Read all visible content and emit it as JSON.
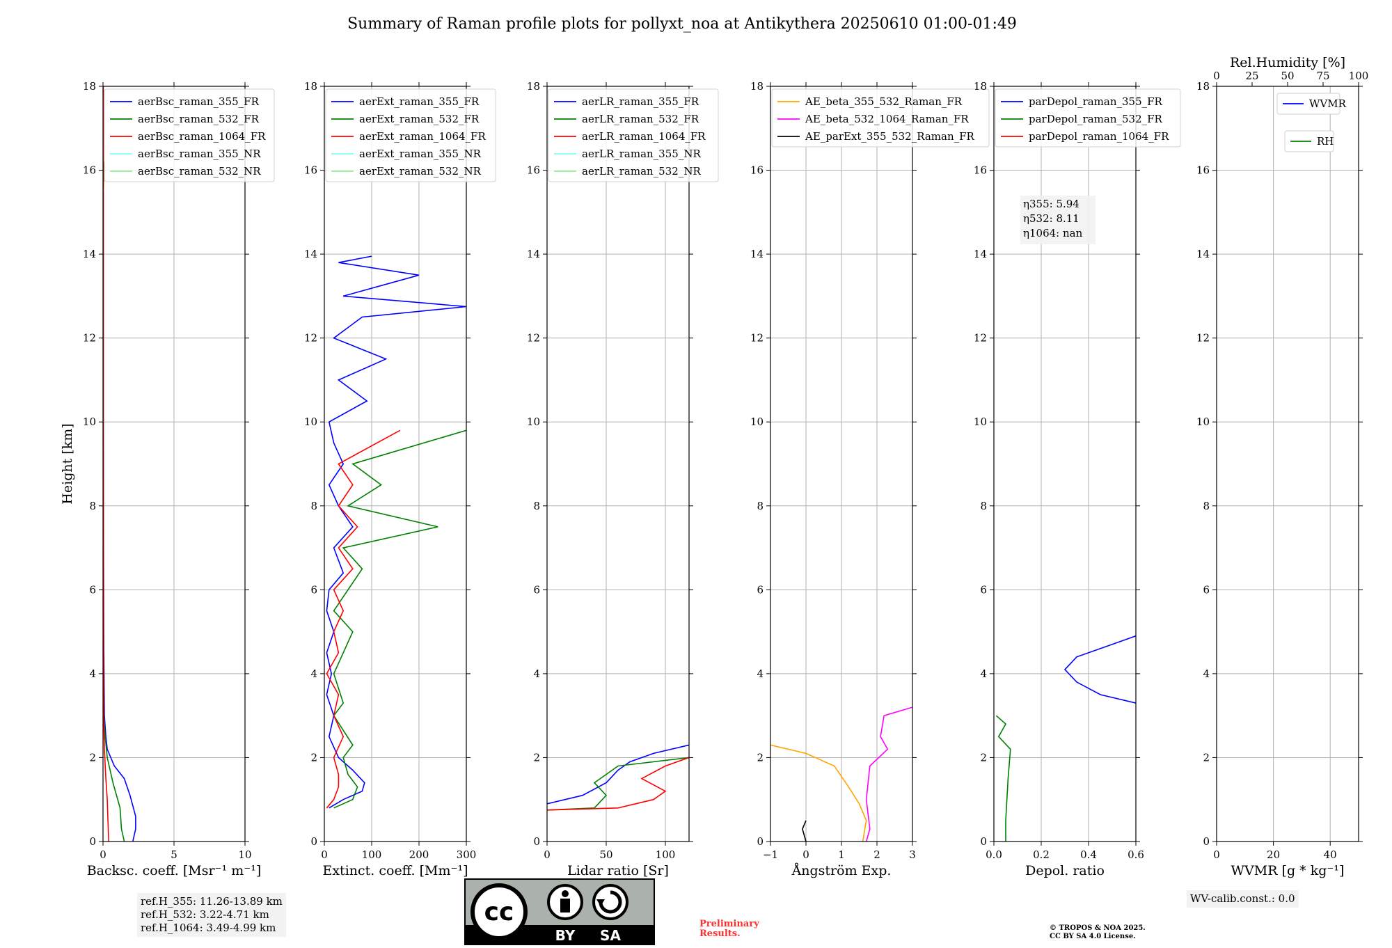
{
  "title": "Summary of Raman profile plots for pollyxt_noa at Antikythera 20250610 01:00-01:49",
  "chart_data": [
    {
      "type": "line",
      "xlabel": "Backsc. coeff. [Msr⁻¹ m⁻¹]",
      "ylabel": "Height [km]",
      "xlim": [
        0,
        10
      ],
      "ylim": [
        0,
        18
      ],
      "xticks": [
        0,
        5,
        10
      ],
      "yticks": [
        0,
        2,
        4,
        6,
        8,
        10,
        12,
        14,
        16,
        18
      ],
      "grid": true,
      "legend_position": "top-left",
      "series": [
        {
          "name": "aerBsc_raman_355_FR",
          "color": "#0000ff",
          "points": [
            [
              2.1,
              0
            ],
            [
              2.3,
              0.3
            ],
            [
              2.3,
              0.6
            ],
            [
              1.9,
              1.1
            ],
            [
              1.5,
              1.5
            ],
            [
              0.8,
              1.8
            ],
            [
              0.3,
              2.2
            ],
            [
              0.2,
              2.5
            ],
            [
              0.1,
              3
            ],
            [
              0.05,
              5
            ],
            [
              0.02,
              10
            ],
            [
              0.02,
              14
            ],
            [
              0.02,
              15.5
            ]
          ]
        },
        {
          "name": "aerBsc_raman_532_FR",
          "color": "#008000",
          "points": [
            [
              1.5,
              0
            ],
            [
              1.3,
              0.3
            ],
            [
              1.2,
              0.8
            ],
            [
              0.7,
              1.4
            ],
            [
              0.3,
              2
            ],
            [
              0.15,
              2.5
            ],
            [
              0.05,
              3
            ],
            [
              0.02,
              8
            ],
            [
              0.02,
              15.5
            ],
            [
              0.08,
              16.2
            ]
          ]
        },
        {
          "name": "aerBsc_raman_1064_FR",
          "color": "#ff0000",
          "points": [
            [
              0.4,
              0
            ],
            [
              0.35,
              0.5
            ],
            [
              0.3,
              1
            ],
            [
              0.2,
              1.5
            ],
            [
              0.1,
              2.2
            ],
            [
              0.05,
              3
            ],
            [
              0.02,
              10
            ],
            [
              0.02,
              18
            ]
          ]
        },
        {
          "name": "aerBsc_raman_355_NR",
          "color": "#7fffff",
          "points": []
        },
        {
          "name": "aerBsc_raman_532_NR",
          "color": "#90ee90",
          "points": []
        }
      ]
    },
    {
      "type": "line",
      "xlabel": "Extinct. coeff. [Mm⁻¹]",
      "xlim": [
        0,
        300
      ],
      "ylim": [
        0,
        18
      ],
      "xticks": [
        0,
        100,
        200,
        300
      ],
      "yticks": [
        0,
        2,
        4,
        6,
        8,
        10,
        12,
        14,
        16,
        18
      ],
      "grid": true,
      "legend_position": "top-left",
      "series": [
        {
          "name": "aerExt_raman_355_FR",
          "color": "#0000ff",
          "points": [
            [
              10,
              0.8
            ],
            [
              40,
              1
            ],
            [
              80,
              1.2
            ],
            [
              85,
              1.4
            ],
            [
              60,
              1.7
            ],
            [
              30,
              2
            ],
            [
              10,
              2.5
            ],
            [
              20,
              3
            ],
            [
              5,
              3.5
            ],
            [
              15,
              4
            ],
            [
              5,
              4.5
            ],
            [
              20,
              5
            ],
            [
              5,
              5.5
            ],
            [
              10,
              6
            ],
            [
              40,
              6.4
            ],
            [
              20,
              7
            ],
            [
              60,
              7.5
            ],
            [
              30,
              8
            ],
            [
              10,
              8.5
            ],
            [
              40,
              9
            ],
            [
              20,
              9.5
            ],
            [
              10,
              10
            ],
            [
              90,
              10.5
            ],
            [
              30,
              11
            ],
            [
              130,
              11.5
            ],
            [
              20,
              12
            ],
            [
              80,
              12.5
            ],
            [
              300,
              12.75
            ],
            [
              40,
              13
            ],
            [
              200,
              13.5
            ],
            [
              30,
              13.8
            ],
            [
              100,
              13.95
            ]
          ]
        },
        {
          "name": "aerExt_raman_532_FR",
          "color": "#008000",
          "points": [
            [
              20,
              0.8
            ],
            [
              60,
              1
            ],
            [
              70,
              1.3
            ],
            [
              50,
              1.6
            ],
            [
              40,
              2
            ],
            [
              60,
              2.3
            ],
            [
              20,
              3
            ],
            [
              40,
              3.3
            ],
            [
              20,
              4
            ],
            [
              40,
              4.5
            ],
            [
              60,
              5
            ],
            [
              20,
              5.5
            ],
            [
              80,
              6.5
            ],
            [
              40,
              7
            ],
            [
              240,
              7.5
            ],
            [
              50,
              8
            ],
            [
              120,
              8.5
            ],
            [
              60,
              9
            ],
            [
              300,
              9.8
            ]
          ]
        },
        {
          "name": "aerExt_raman_1064_FR",
          "color": "#ff0000",
          "points": [
            [
              5,
              0.8
            ],
            [
              20,
              1
            ],
            [
              30,
              1.3
            ],
            [
              30,
              1.6
            ],
            [
              20,
              2
            ],
            [
              40,
              2.5
            ],
            [
              20,
              3
            ],
            [
              30,
              3.5
            ],
            [
              5,
              4
            ],
            [
              30,
              4.5
            ],
            [
              20,
              5
            ],
            [
              40,
              5.5
            ],
            [
              20,
              6
            ],
            [
              60,
              6.5
            ],
            [
              30,
              7
            ],
            [
              70,
              7.5
            ],
            [
              30,
              8
            ],
            [
              60,
              8.5
            ],
            [
              30,
              9
            ],
            [
              160,
              9.8
            ]
          ]
        },
        {
          "name": "aerExt_raman_355_NR",
          "color": "#7fffff",
          "points": []
        },
        {
          "name": "aerExt_raman_532_NR",
          "color": "#90ee90",
          "points": []
        }
      ]
    },
    {
      "type": "line",
      "xlabel": "Lidar ratio [Sr]",
      "xlim": [
        0,
        120
      ],
      "ylim": [
        0,
        18
      ],
      "xticks": [
        0,
        50,
        100
      ],
      "yticks": [
        0,
        2,
        4,
        6,
        8,
        10,
        12,
        14,
        16,
        18
      ],
      "grid": true,
      "legend_position": "top-left",
      "series": [
        {
          "name": "aerLR_raman_355_FR",
          "color": "#0000ff",
          "points": [
            [
              0,
              0.9
            ],
            [
              30,
              1.1
            ],
            [
              50,
              1.4
            ],
            [
              60,
              1.7
            ],
            [
              70,
              1.9
            ],
            [
              90,
              2.1
            ],
            [
              120,
              2.3
            ]
          ]
        },
        {
          "name": "aerLR_raman_532_FR",
          "color": "#008000",
          "points": [
            [
              0,
              0.75
            ],
            [
              40,
              0.8
            ],
            [
              50,
              1.1
            ],
            [
              40,
              1.4
            ],
            [
              50,
              1.6
            ],
            [
              60,
              1.8
            ],
            [
              120,
              2.0
            ]
          ]
        },
        {
          "name": "aerLR_raman_1064_FR",
          "color": "#ff0000",
          "points": [
            [
              0,
              0.75
            ],
            [
              60,
              0.8
            ],
            [
              90,
              1
            ],
            [
              100,
              1.2
            ],
            [
              80,
              1.5
            ],
            [
              100,
              1.8
            ],
            [
              120,
              2.0
            ]
          ]
        },
        {
          "name": "aerLR_raman_355_NR",
          "color": "#7fffff",
          "points": []
        },
        {
          "name": "aerLR_raman_532_NR",
          "color": "#90ee90",
          "points": []
        }
      ]
    },
    {
      "type": "line",
      "xlabel": "Ångström Exp.",
      "xlim": [
        -1,
        3
      ],
      "ylim": [
        0,
        18
      ],
      "xticks": [
        -1,
        0,
        1,
        2,
        3
      ],
      "yticks": [
        0,
        2,
        4,
        6,
        8,
        10,
        12,
        14,
        16,
        18
      ],
      "grid": true,
      "legend_position": "top-left",
      "series": [
        {
          "name": "AE_beta_355_532_Raman_FR",
          "color": "#ffa500",
          "points": [
            [
              -1,
              2.3
            ],
            [
              0,
              2.1
            ],
            [
              0.8,
              1.8
            ],
            [
              1.2,
              1.3
            ],
            [
              1.5,
              0.9
            ],
            [
              1.7,
              0.5
            ],
            [
              1.6,
              0
            ]
          ]
        },
        {
          "name": "AE_beta_532_1064_Raman_FR",
          "color": "#ff00ff",
          "points": [
            [
              3,
              3.2
            ],
            [
              2.2,
              3
            ],
            [
              2.1,
              2.5
            ],
            [
              2.3,
              2.2
            ],
            [
              1.8,
              1.8
            ],
            [
              1.7,
              1
            ],
            [
              1.8,
              0.3
            ],
            [
              1.7,
              0
            ]
          ]
        },
        {
          "name": "AE_parExt_355_532_Raman_FR",
          "color": "#000000",
          "points": [
            [
              0,
              0.5
            ],
            [
              -0.1,
              0.3
            ],
            [
              0,
              0
            ]
          ]
        }
      ]
    },
    {
      "type": "line",
      "xlabel": "Depol. ratio",
      "xlim": [
        0,
        0.6
      ],
      "ylim": [
        0,
        18
      ],
      "xticks": [
        0.0,
        0.2,
        0.4,
        0.6
      ],
      "yticks": [
        0,
        2,
        4,
        6,
        8,
        10,
        12,
        14,
        16,
        18
      ],
      "grid": true,
      "legend_position": "top-left",
      "series": [
        {
          "name": "parDepol_raman_355_FR",
          "color": "#0000ff",
          "points": [
            [
              0.6,
              3.3
            ],
            [
              0.45,
              3.5
            ],
            [
              0.35,
              3.8
            ],
            [
              0.3,
              4.1
            ],
            [
              0.35,
              4.4
            ],
            [
              0.5,
              4.7
            ],
            [
              0.6,
              4.9
            ]
          ]
        },
        {
          "name": "parDepol_raman_532_FR",
          "color": "#008000",
          "points": [
            [
              0.05,
              0
            ],
            [
              0.05,
              0.5
            ],
            [
              0.06,
              1.5
            ],
            [
              0.07,
              2.2
            ],
            [
              0.02,
              2.5
            ],
            [
              0.05,
              2.8
            ],
            [
              0.01,
              3.0
            ]
          ]
        },
        {
          "name": "parDepol_raman_1064_FR",
          "color": "#ff0000",
          "points": []
        }
      ],
      "annotations": [
        {
          "label": "η355",
          "value": "5.94"
        },
        {
          "label": "η532",
          "value": "8.11"
        },
        {
          "label": "η1064",
          "value": "nan"
        }
      ]
    },
    {
      "type": "line",
      "xlabel": "WVMR [g * kg⁻¹]",
      "x2label": "Rel.Humidity [%]",
      "xlim": [
        0,
        50
      ],
      "x2lim": [
        0,
        100
      ],
      "ylim": [
        0,
        18
      ],
      "xticks": [
        0,
        20,
        40
      ],
      "x2ticks": [
        0,
        25,
        50,
        75,
        100
      ],
      "yticks": [
        0,
        2,
        4,
        6,
        8,
        10,
        12,
        14,
        16,
        18
      ],
      "grid": true,
      "series": [
        {
          "name": "WVMR",
          "color": "#0000ff",
          "points": []
        },
        {
          "name": "RH",
          "color": "#008000",
          "points": []
        }
      ]
    }
  ],
  "ref_heights": [
    "ref.H_355: 11.26-13.89 km",
    "ref.H_532: 3.22-4.71 km",
    "ref.H_1064: 3.49-4.99 km"
  ],
  "wv_calib": "WV-calib.const.: 0.0",
  "preliminary": [
    "Preliminary",
    "Results."
  ],
  "copyright": [
    "© TROPOS & NOA 2025.",
    "CC BY SA 4.0 License."
  ],
  "license_badge": {
    "by": "BY",
    "sa": "SA",
    "cc": "cc"
  }
}
